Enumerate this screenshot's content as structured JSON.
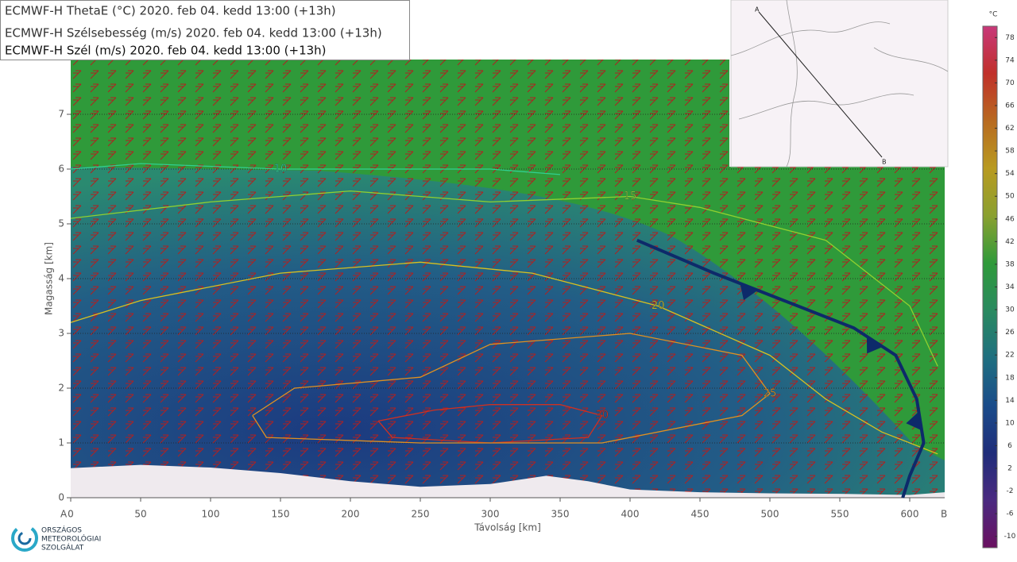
{
  "chart_data": {
    "type": "crosssection",
    "legend": [
      "ECMWF-H ThetaE (°C) 2020. feb 04. kedd 13:00 (+13h)",
      "ECMWF-H Szélsebesség (m/s) 2020. feb 04. kedd 13:00 (+13h)",
      "ECMWF-H Szél (m/s) 2020. feb 04. kedd 13:00 (+13h)"
    ],
    "xlabel": "Távolság [km]",
    "ylabel": "Magasság [km]",
    "end_labels": [
      "A",
      "B"
    ],
    "xlim": [
      0,
      625
    ],
    "ylim": [
      0,
      8
    ],
    "xticks": [
      0,
      50,
      100,
      150,
      200,
      250,
      300,
      350,
      400,
      450,
      500,
      550,
      600
    ],
    "yticks": [
      0,
      1,
      2,
      3,
      4,
      5,
      6,
      7
    ],
    "grid": true,
    "terrain": {
      "color": "#efeaee",
      "x": [
        0,
        50,
        100,
        150,
        200,
        250,
        300,
        340,
        370,
        400,
        450,
        500,
        550,
        600,
        625
      ],
      "y": [
        0.54,
        0.6,
        0.55,
        0.45,
        0.3,
        0.2,
        0.25,
        0.4,
        0.3,
        0.15,
        0.1,
        0.08,
        0.07,
        0.05,
        0.1
      ]
    },
    "front": {
      "color": "#0d2a6a",
      "x": [
        405,
        460,
        510,
        560,
        590,
        605,
        610,
        600,
        595
      ],
      "y": [
        4.7,
        4.1,
        3.6,
        3.1,
        2.6,
        1.8,
        1.0,
        0.4,
        0
      ]
    },
    "contours": [
      {
        "level": 30,
        "color": "#d03020",
        "x": [
          220,
          260,
          300,
          350,
          380,
          370,
          300,
          230,
          220
        ],
        "y": [
          1.4,
          1.6,
          1.7,
          1.7,
          1.5,
          1.1,
          1.0,
          1.1,
          1.4
        ]
      },
      {
        "level": 25,
        "color": "#e09020",
        "x": [
          130,
          160,
          250,
          300,
          400,
          480,
          500,
          480,
          380,
          250,
          140,
          130
        ],
        "y": [
          1.5,
          2.0,
          2.2,
          2.8,
          3.0,
          2.6,
          1.9,
          1.5,
          1.0,
          1.0,
          1.1,
          1.5
        ]
      },
      {
        "level": 20,
        "color": "#d8c020",
        "x": [
          0,
          50,
          150,
          250,
          330,
          420,
          500,
          540,
          580,
          620
        ],
        "y": [
          3.2,
          3.6,
          4.1,
          4.3,
          4.1,
          3.5,
          2.6,
          1.8,
          1.2,
          0.8
        ]
      },
      {
        "level": 15,
        "color": "#90d030",
        "x": [
          0,
          100,
          200,
          300,
          400,
          450,
          540,
          600,
          620
        ],
        "y": [
          5.1,
          5.4,
          5.6,
          5.4,
          5.5,
          5.3,
          4.7,
          3.5,
          2.4
        ]
      },
      {
        "level": 10,
        "color": "#30d090",
        "x": [
          0,
          50,
          150,
          300,
          350
        ],
        "y": [
          6.0,
          6.1,
          6.0,
          6.0,
          5.9
        ]
      }
    ],
    "colorbar": {
      "label": "°C",
      "lim": [
        -12,
        80
      ],
      "ticks": [
        78,
        74,
        70,
        66,
        62,
        58,
        54,
        50,
        46,
        42,
        38,
        34,
        30,
        26,
        22,
        18,
        14,
        10,
        6,
        2,
        -2,
        -6,
        -10
      ],
      "colors": [
        "#c8387a",
        "#c0302a",
        "#b86a20",
        "#b89a20",
        "#8aa030",
        "#2f9a3a",
        "#2a8a60",
        "#1f6f80",
        "#1a4c8a",
        "#1f2d7a",
        "#4a2a80",
        "#6a1060"
      ]
    },
    "map": {
      "start": "A",
      "end": "B"
    },
    "logo": [
      "ORSZÁGOS",
      "METEOROLÓGIAI",
      "SZOLGÁLAT"
    ]
  }
}
